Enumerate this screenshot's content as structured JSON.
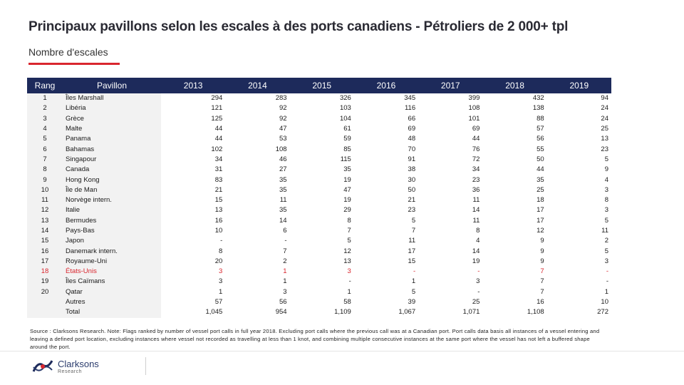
{
  "title": "Principaux pavillons selon les escales à des ports canadiens - Pétroliers de 2 000+ tpl",
  "subtitle": "Nombre d'escales",
  "colors": {
    "accent": "#d9262e",
    "header_bg": "#1d2a5b",
    "highlight": "#d9262e"
  },
  "table": {
    "headers": {
      "rank": "Rang",
      "flag": "Pavillon",
      "years": [
        "2013",
        "2014",
        "2015",
        "2016",
        "2017",
        "2018",
        "2019"
      ]
    },
    "rows": [
      {
        "rank": "1",
        "flag": "Îles Marshall",
        "values": [
          "294",
          "283",
          "326",
          "345",
          "399",
          "432",
          "94"
        ]
      },
      {
        "rank": "2",
        "flag": "Libéria",
        "values": [
          "121",
          "92",
          "103",
          "116",
          "108",
          "138",
          "24"
        ]
      },
      {
        "rank": "3",
        "flag": "Grèce",
        "values": [
          "125",
          "92",
          "104",
          "66",
          "101",
          "88",
          "24"
        ]
      },
      {
        "rank": "4",
        "flag": "Malte",
        "values": [
          "44",
          "47",
          "61",
          "69",
          "69",
          "57",
          "25"
        ]
      },
      {
        "rank": "5",
        "flag": "Panama",
        "values": [
          "44",
          "53",
          "59",
          "48",
          "44",
          "56",
          "13"
        ]
      },
      {
        "rank": "6",
        "flag": "Bahamas",
        "values": [
          "102",
          "108",
          "85",
          "70",
          "76",
          "55",
          "23"
        ]
      },
      {
        "rank": "7",
        "flag": "Singapour",
        "values": [
          "34",
          "46",
          "115",
          "91",
          "72",
          "50",
          "5"
        ]
      },
      {
        "rank": "8",
        "flag": "Canada",
        "values": [
          "31",
          "27",
          "35",
          "38",
          "34",
          "44",
          "9"
        ]
      },
      {
        "rank": "9",
        "flag": "Hong Kong",
        "values": [
          "83",
          "35",
          "19",
          "30",
          "23",
          "35",
          "4"
        ]
      },
      {
        "rank": "10",
        "flag": "Île de Man",
        "values": [
          "21",
          "35",
          "47",
          "50",
          "36",
          "25",
          "3"
        ]
      },
      {
        "rank": "11",
        "flag": "Norvège intern.",
        "values": [
          "15",
          "11",
          "19",
          "21",
          "11",
          "18",
          "8"
        ]
      },
      {
        "rank": "12",
        "flag": "Italie",
        "values": [
          "13",
          "35",
          "29",
          "23",
          "14",
          "17",
          "3"
        ]
      },
      {
        "rank": "13",
        "flag": "Bermudes",
        "values": [
          "16",
          "14",
          "8",
          "5",
          "11",
          "17",
          "5"
        ]
      },
      {
        "rank": "14",
        "flag": "Pays-Bas",
        "values": [
          "10",
          "6",
          "7",
          "7",
          "8",
          "12",
          "11"
        ]
      },
      {
        "rank": "15",
        "flag": "Japon",
        "values": [
          "-",
          "-",
          "5",
          "11",
          "4",
          "9",
          "2"
        ]
      },
      {
        "rank": "16",
        "flag": "Danemark intern.",
        "values": [
          "8",
          "7",
          "12",
          "17",
          "14",
          "9",
          "5"
        ]
      },
      {
        "rank": "17",
        "flag": "Royaume-Uni",
        "values": [
          "20",
          "2",
          "13",
          "15",
          "19",
          "9",
          "3"
        ]
      },
      {
        "rank": "18",
        "flag": "États-Unis",
        "values": [
          "3",
          "1",
          "3",
          "-",
          "-",
          "7",
          "-"
        ],
        "highlight": true
      },
      {
        "rank": "19",
        "flag": "Îles Caïmans",
        "values": [
          "3",
          "1",
          "-",
          "1",
          "3",
          "7",
          "-"
        ]
      },
      {
        "rank": "20",
        "flag": "Qatar",
        "values": [
          "1",
          "3",
          "1",
          "5",
          "-",
          "7",
          "1"
        ]
      },
      {
        "rank": "",
        "flag": "Autres",
        "values": [
          "57",
          "56",
          "58",
          "39",
          "25",
          "16",
          "10"
        ]
      },
      {
        "rank": "",
        "flag": "Total",
        "values": [
          "1,045",
          "954",
          "1,109",
          "1,067",
          "1,071",
          "1,108",
          "272"
        ]
      }
    ]
  },
  "note": "Source : Clarksons Research. Note: Flags ranked by number of vessel port calls in full year 2018. Excluding port calls where the previous call was at a Canadian port. Port calls data basis all instances of a vessel entering and leaving a defined port location, excluding instances where vessel not recorded as travelling at less than 1 knot, and combining multiple consecutive instances at the same port where the vessel has not left a buffered shape around the port.",
  "logo": {
    "name": "Clarksons",
    "sub": "Research",
    "icon": "clarksons-logo-icon"
  }
}
